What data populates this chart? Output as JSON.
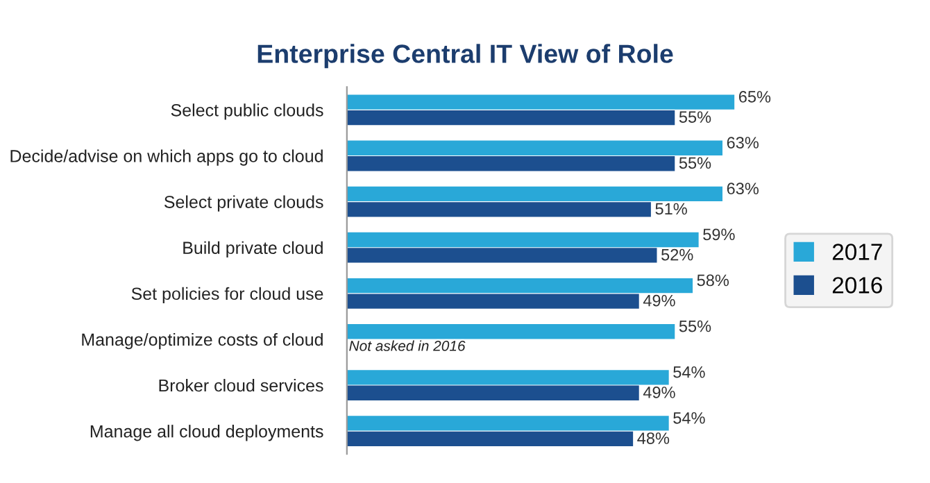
{
  "chart_data": {
    "type": "bar",
    "orientation": "horizontal",
    "title": "Enterprise Central IT View of Role",
    "categories": [
      "Select public clouds",
      "Decide/advise on which apps go to cloud",
      "Select private clouds",
      "Build private cloud",
      "Set policies for cloud use",
      "Manage/optimize costs of cloud",
      "Broker cloud services",
      "Manage all cloud deployments"
    ],
    "series": [
      {
        "name": "2017",
        "color": "#29a8d8",
        "values": [
          65,
          63,
          63,
          59,
          58,
          55,
          54,
          54
        ],
        "value_labels": [
          "65%",
          "63%",
          "63%",
          "59%",
          "58%",
          "55%",
          "54%",
          "54%"
        ]
      },
      {
        "name": "2016",
        "color": "#1c4f8f",
        "values": [
          55,
          55,
          51,
          52,
          49,
          null,
          49,
          48
        ],
        "value_labels": [
          "55%",
          "55%",
          "51%",
          "52%",
          "49%",
          null,
          "49%",
          "48%"
        ]
      }
    ],
    "annotations": [
      {
        "text": "Not asked in 2016",
        "x": 0,
        "y": "Manage/optimize costs of cloud"
      }
    ],
    "legend": "right",
    "tick_labels": "y",
    "grid": false
  }
}
